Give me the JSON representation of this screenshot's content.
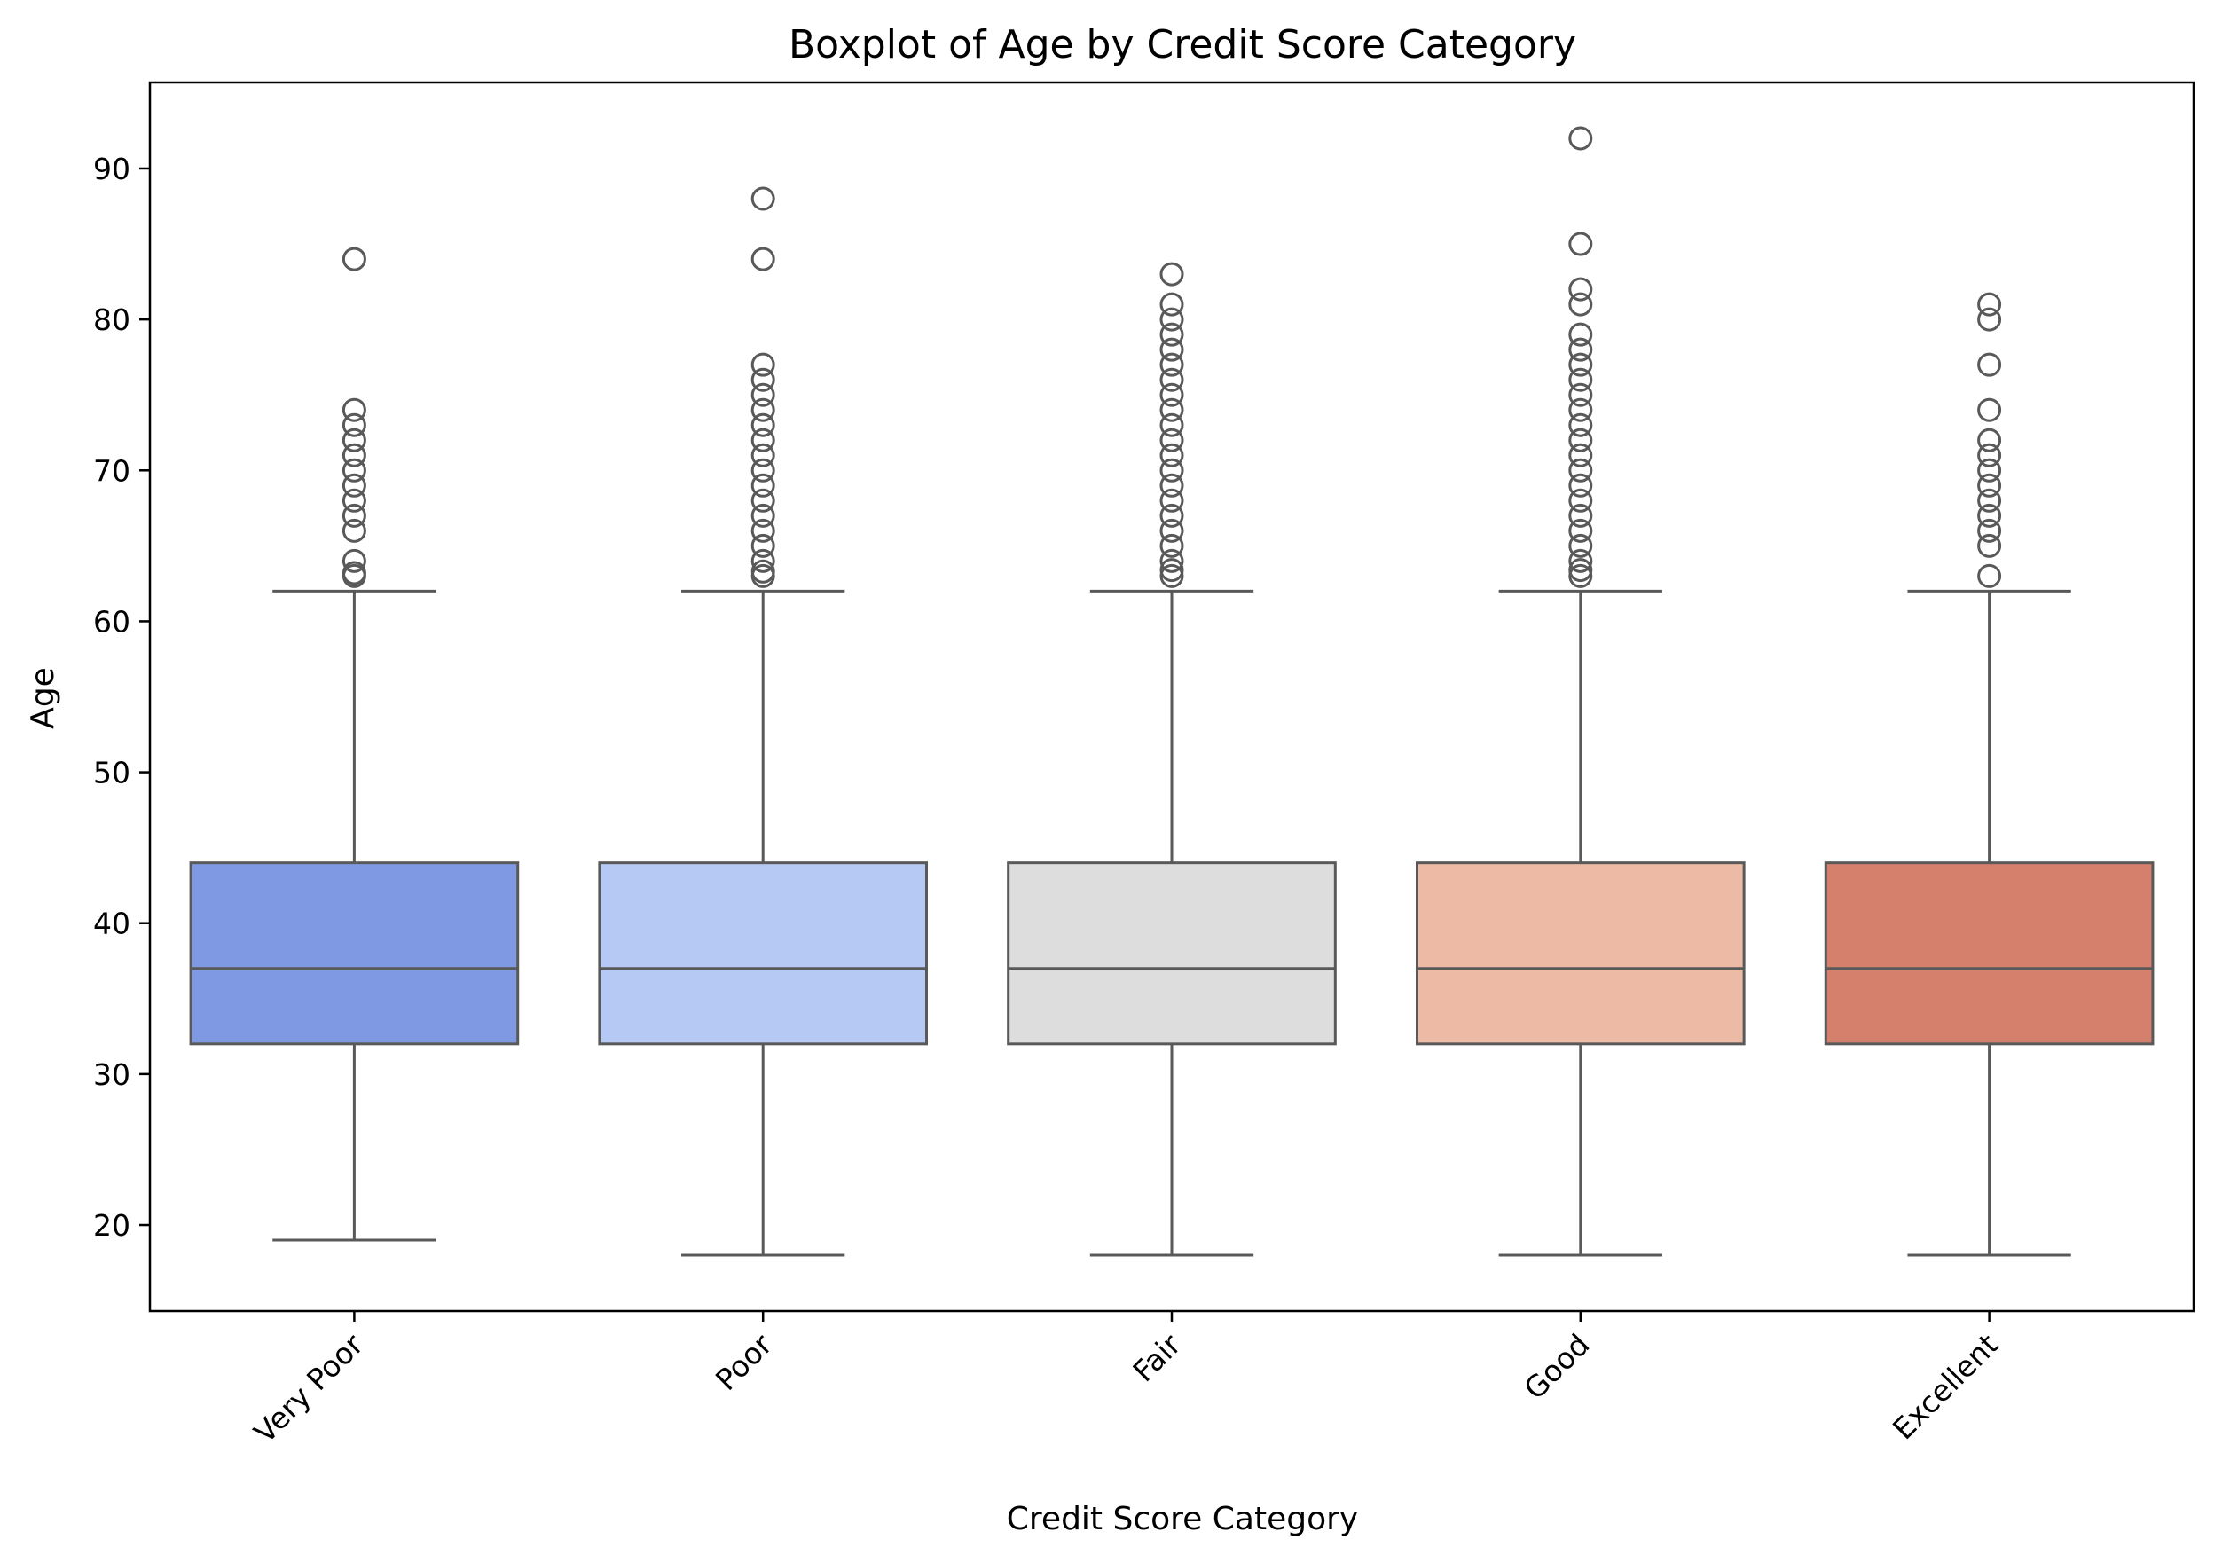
{
  "chart_data": {
    "type": "boxplot",
    "title": "Boxplot of Age by Credit Score Category",
    "xlabel": "Credit Score Category",
    "ylabel": "Age",
    "ylim": [
      14.3,
      95.7
    ],
    "yticks": [
      20,
      30,
      40,
      50,
      60,
      70,
      80,
      90
    ],
    "grid": false,
    "legend": "none",
    "categories": [
      "Very Poor",
      "Poor",
      "Fair",
      "Good",
      "Excellent"
    ],
    "colors": [
      "#7f9ae2",
      "#b5c9f4",
      "#dddddd",
      "#edbba5",
      "#d57f6d"
    ],
    "line_color": "#595959",
    "boxes": [
      {
        "category": "Very Poor",
        "whisker_low": 19,
        "q1": 32,
        "median": 37,
        "q3": 44,
        "whisker_high": 62,
        "outliers": [
          63,
          63.2,
          64,
          66,
          67,
          68,
          69,
          70,
          71,
          72,
          73,
          74,
          84
        ]
      },
      {
        "category": "Poor",
        "whisker_low": 18,
        "q1": 32,
        "median": 37,
        "q3": 44,
        "whisker_high": 62,
        "outliers": [
          63,
          63.3,
          64,
          65,
          66,
          67,
          68,
          69,
          70,
          71,
          72,
          73,
          74,
          75,
          76,
          77,
          84,
          88
        ]
      },
      {
        "category": "Fair",
        "whisker_low": 18,
        "q1": 32,
        "median": 37,
        "q3": 44,
        "whisker_high": 62,
        "outliers": [
          63,
          63.4,
          64,
          65,
          66,
          67,
          68,
          69,
          70,
          71,
          72,
          73,
          74,
          75,
          76,
          77,
          78,
          79,
          80,
          81,
          83
        ]
      },
      {
        "category": "Good",
        "whisker_low": 18,
        "q1": 32,
        "median": 37,
        "q3": 44,
        "whisker_high": 62,
        "outliers": [
          63,
          63.4,
          64,
          65,
          66,
          67,
          68,
          69,
          70,
          71,
          72,
          73,
          74,
          75,
          76,
          77,
          78,
          79,
          81,
          82,
          85,
          92
        ]
      },
      {
        "category": "Excellent",
        "whisker_low": 18,
        "q1": 32,
        "median": 37,
        "q3": 44,
        "whisker_high": 62,
        "outliers": [
          63,
          65,
          66,
          67,
          68,
          69,
          70,
          71,
          72,
          74,
          77,
          80,
          81
        ]
      }
    ]
  }
}
